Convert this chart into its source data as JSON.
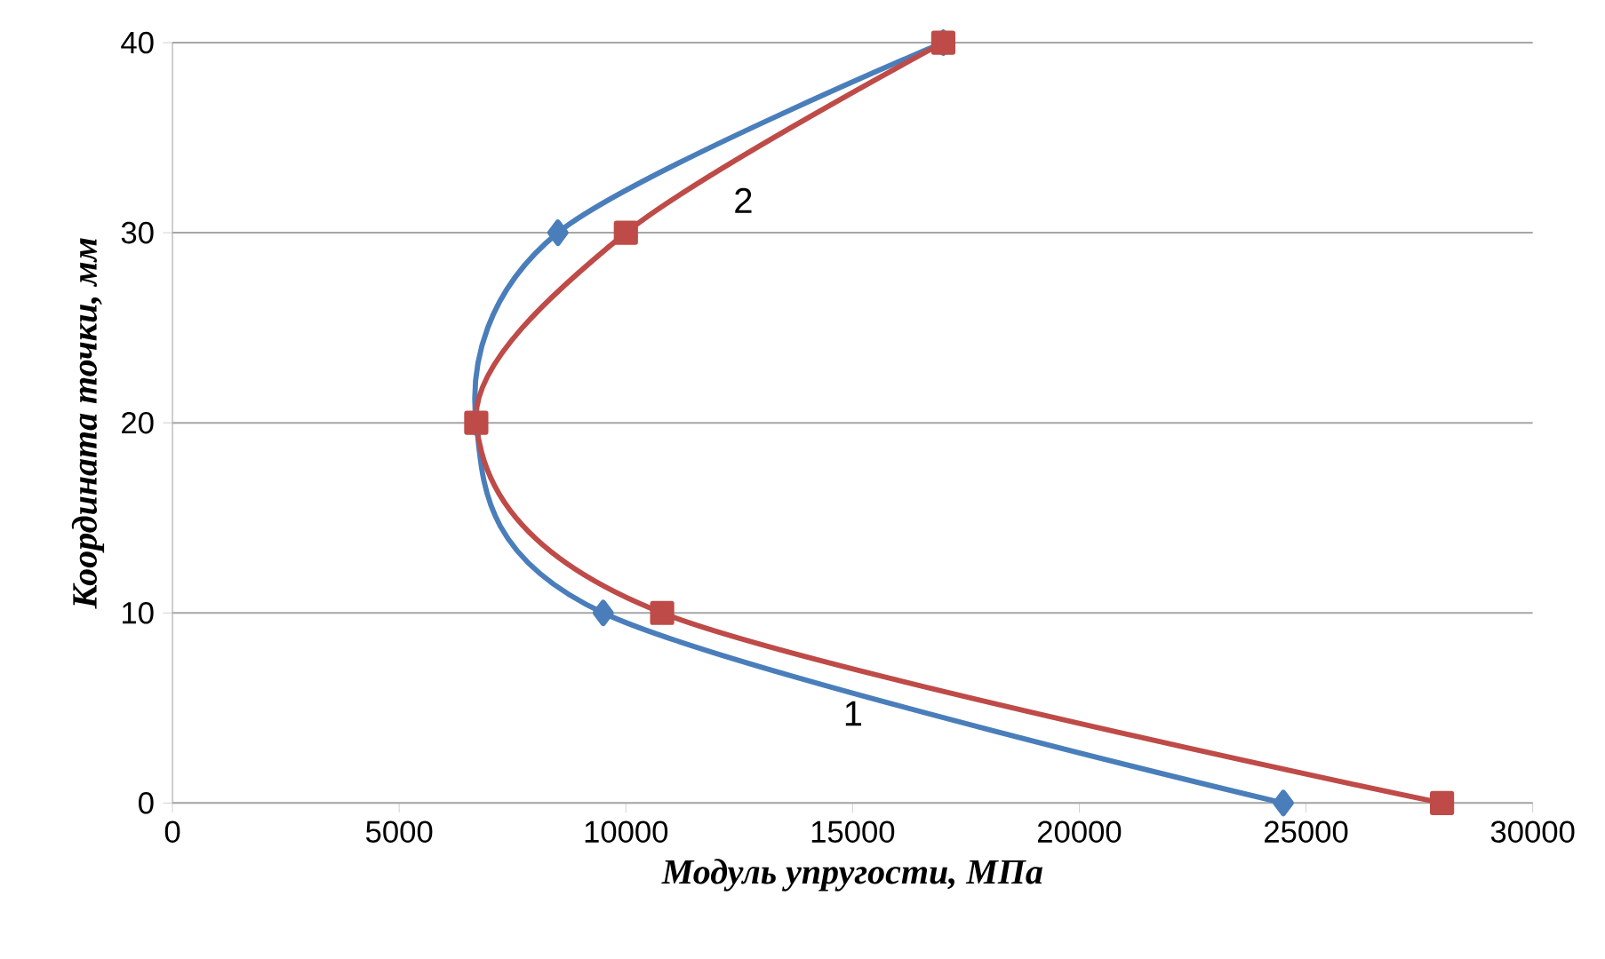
{
  "chart_data": {
    "type": "line",
    "xlabel": "Модуль упругости, МПа",
    "ylabel": "Координата точки, мм",
    "xlim": [
      0,
      30000
    ],
    "xticks": [
      0,
      5000,
      10000,
      15000,
      20000,
      25000,
      30000
    ],
    "ylim": [
      0,
      40
    ],
    "yticks": [
      0,
      10,
      20,
      30,
      40
    ],
    "grid": "y",
    "line_style": "solid",
    "series": [
      {
        "name": "1",
        "color": "#4a7ebb",
        "marker": "diamond",
        "x": [
          24500,
          9500,
          6700,
          8500,
          17000
        ],
        "values": [
          0,
          10,
          20,
          30,
          40
        ]
      },
      {
        "name": "2",
        "color": "#be4b48",
        "marker": "square",
        "x": [
          28000,
          10800,
          6700,
          10000,
          17000
        ],
        "values": [
          0,
          10,
          20,
          30,
          40
        ]
      }
    ]
  }
}
